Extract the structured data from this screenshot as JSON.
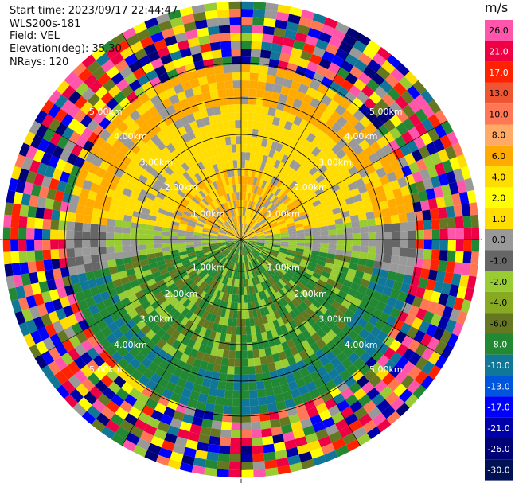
{
  "header": {
    "start_time": "Start time: 2023/09/17 22:44:47",
    "instrument": "WLS200s-181",
    "field": "Field: VEL",
    "elevation": "Elevation(deg): 35.30",
    "nrays": "NRays: 120"
  },
  "colorbar": {
    "unit": "m/s",
    "levels": [
      "26.0",
      "21.0",
      "17.0",
      "13.0",
      "10.0",
      "8.0",
      "6.0",
      "4.0",
      "2.0",
      "1.0",
      "0.0",
      "-1.0",
      "-2.0",
      "-4.0",
      "-6.0",
      "-8.0",
      "-10.0",
      "-13.0",
      "-17.0",
      "-21.0",
      "-26.0",
      "-30.0"
    ],
    "colors": [
      "#ff55aa",
      "#ee0044",
      "#ff2200",
      "#ee5533",
      "#ff7755",
      "#ffaa66",
      "#ffaa00",
      "#ffdd00",
      "#ffff00",
      "#ffdd00",
      "#999999",
      "#666666",
      "#99cc33",
      "#88aa22",
      "#667722",
      "#228833",
      "#117799",
      "#0055dd",
      "#0000ff",
      "#0000aa",
      "#000077",
      "#001155"
    ]
  },
  "chart_data": {
    "type": "ppi",
    "field": "VEL",
    "units": "m/s",
    "nrays": 120,
    "elevation_deg": 35.3,
    "range_rings": [
      {
        "label": "1.00km"
      },
      {
        "label": "2.00km"
      },
      {
        "label": "3.00km"
      },
      {
        "label": "4.00km"
      },
      {
        "label": "5.00km"
      }
    ],
    "colorbar_range": [
      -30.0,
      26.0
    ]
  }
}
